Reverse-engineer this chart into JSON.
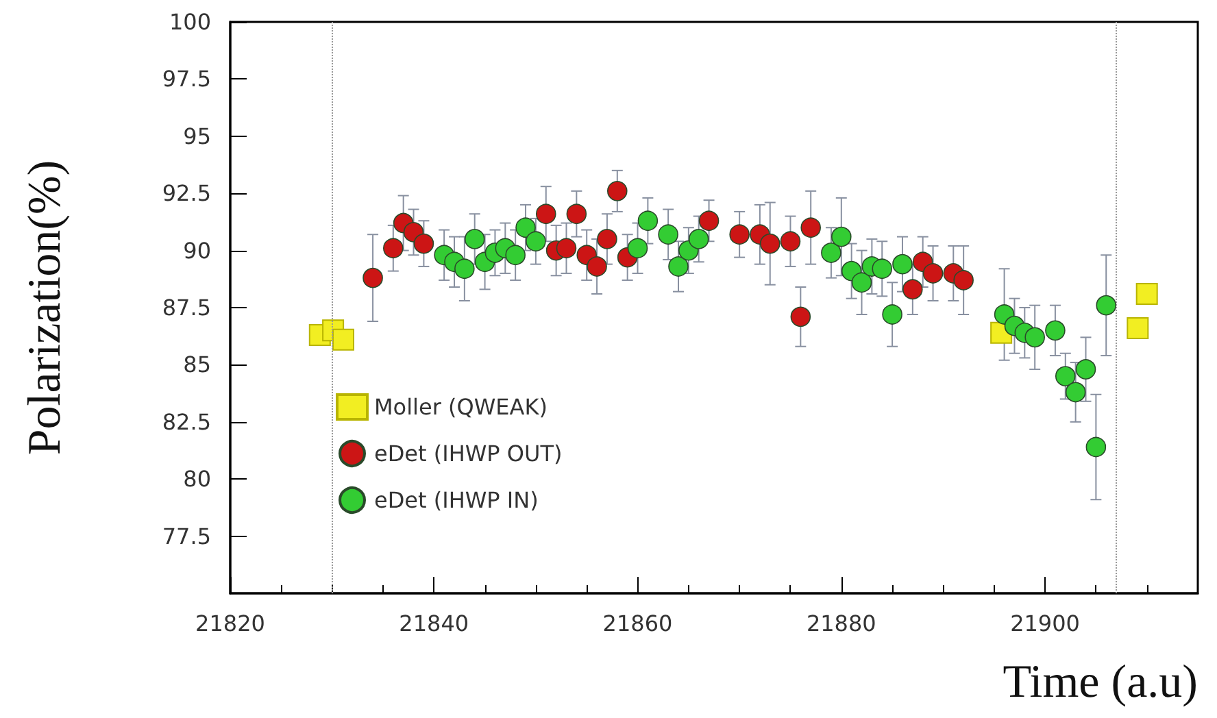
{
  "chart_data": {
    "type": "scatter",
    "xlabel": "Time (a.u)",
    "ylabel": "Polarization(%)",
    "xlim": [
      21820,
      21915
    ],
    "xticks": [
      21820,
      21840,
      21860,
      21880,
      21900
    ],
    "ylim": [
      75,
      100
    ],
    "yticks": [
      77.5,
      80,
      82.5,
      85,
      87.5,
      90,
      92.5,
      95,
      97.5,
      100
    ],
    "grid": false,
    "legend": "bottom left",
    "ref_lines": [
      {
        "axis": "x",
        "value": 21830,
        "color": "#999999",
        "line_style": "dotted"
      },
      {
        "axis": "x",
        "value": 21907,
        "color": "#999999",
        "line_style": "dotted"
      }
    ],
    "series": [
      {
        "name": "Moller (QWEAK)",
        "color": "#f2ee22",
        "marker": "square",
        "x": [
          21828.8,
          21830.1,
          21831.1,
          21895.7,
          21909.1,
          21910.0
        ],
        "values": [
          86.3,
          86.5,
          86.1,
          86.4,
          86.6,
          88.1
        ]
      },
      {
        "name": "eDet (IHWP OUT)",
        "color": "#cc1515",
        "marker": "circle",
        "x": [
          21834,
          21836,
          21837,
          21838,
          21839,
          21851,
          21852,
          21853,
          21854,
          21855,
          21856,
          21857,
          21858,
          21859,
          21867,
          21870,
          21872,
          21873,
          21875,
          21876,
          21877,
          21887,
          21888,
          21889,
          21891,
          21892
        ],
        "values": [
          88.8,
          90.1,
          91.2,
          90.8,
          90.3,
          91.6,
          90.0,
          90.1,
          91.6,
          89.8,
          89.3,
          90.5,
          92.6,
          89.7,
          91.3,
          90.7,
          90.7,
          90.3,
          90.4,
          87.1,
          91.0,
          88.3,
          89.5,
          89.0,
          89.0,
          88.7
        ],
        "errors": [
          1.9,
          1.0,
          1.2,
          1.0,
          1.0,
          1.2,
          1.1,
          1.1,
          1.0,
          1.1,
          1.2,
          1.1,
          0.9,
          1.0,
          0.9,
          1.0,
          1.3,
          1.8,
          1.1,
          1.3,
          1.6,
          1.1,
          1.1,
          1.2,
          1.2,
          1.5
        ]
      },
      {
        "name": "eDet (IHWP IN)",
        "color": "#33cc33",
        "marker": "circle",
        "x": [
          21841,
          21842,
          21843,
          21844,
          21845,
          21846,
          21847,
          21848,
          21849,
          21850,
          21860,
          21861,
          21863,
          21864,
          21865,
          21866,
          21879,
          21880,
          21881,
          21882,
          21883,
          21884,
          21885,
          21886,
          21896,
          21897,
          21898,
          21899,
          21901,
          21902,
          21903,
          21904,
          21905,
          21906
        ],
        "values": [
          89.8,
          89.5,
          89.2,
          90.5,
          89.5,
          89.9,
          90.1,
          89.8,
          91.0,
          90.4,
          90.1,
          91.3,
          90.7,
          89.3,
          90.0,
          90.5,
          89.9,
          90.6,
          89.1,
          88.6,
          89.3,
          89.2,
          87.2,
          89.4,
          87.2,
          86.7,
          86.4,
          86.2,
          86.5,
          84.5,
          83.8,
          84.8,
          81.4,
          87.6
        ],
        "errors": [
          1.1,
          1.1,
          1.4,
          1.1,
          1.2,
          1.0,
          1.1,
          1.1,
          1.0,
          1.0,
          1.1,
          1.0,
          1.1,
          1.1,
          1.0,
          1.0,
          1.1,
          1.7,
          1.2,
          1.4,
          1.2,
          1.2,
          1.4,
          1.2,
          2.0,
          1.2,
          1.1,
          1.4,
          1.1,
          1.0,
          1.3,
          1.4,
          2.3,
          2.2
        ]
      }
    ]
  }
}
